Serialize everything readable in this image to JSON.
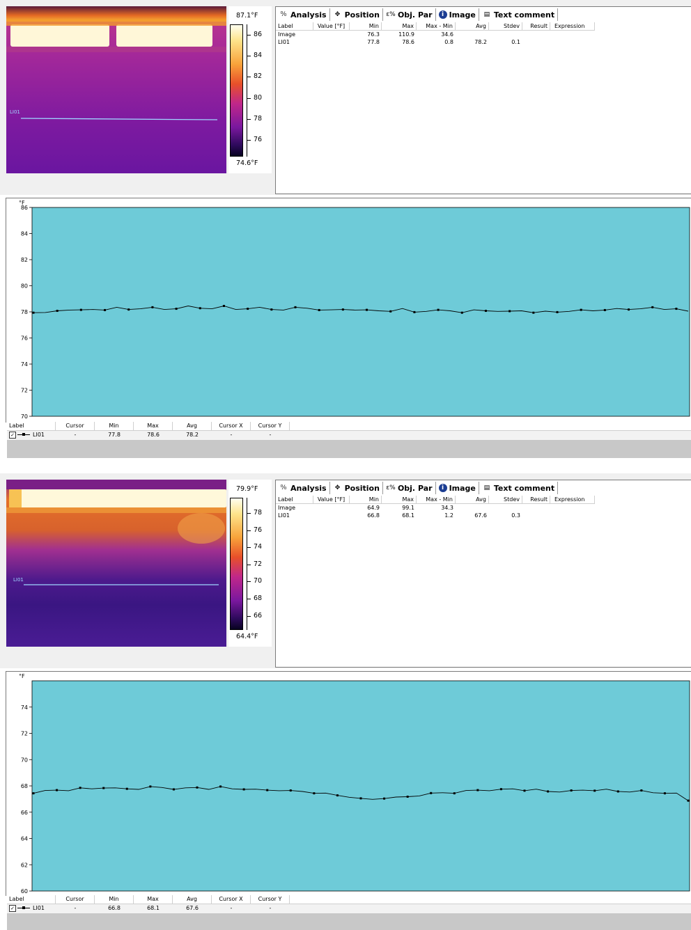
{
  "tabs": [
    {
      "label": "Analysis",
      "icon": "analysis-icon"
    },
    {
      "label": "Position",
      "icon": "position-icon"
    },
    {
      "label": "Obj. Par",
      "icon": "object-parameters-icon"
    },
    {
      "label": "Image",
      "icon": "info-icon"
    },
    {
      "label": "Text comment",
      "icon": "text-comment-icon"
    }
  ],
  "analysis_columns": [
    "Label",
    "Value [°F]",
    "Min",
    "Max",
    "Max - Min",
    "Avg",
    "Stdev",
    "Result",
    "Expression"
  ],
  "legend_columns": [
    "Label",
    "Cursor",
    "Min",
    "Max",
    "Avg",
    "Cursor X",
    "Cursor Y"
  ],
  "colors": {
    "chart_bg": "#6ecbd8",
    "line_marker": "#9fd7ff"
  },
  "panels": [
    {
      "scale": {
        "max": "87.1°F",
        "min": "74.6°F",
        "ticks": [
          "86",
          "84",
          "82",
          "80",
          "78",
          "76"
        ]
      },
      "line_label": "LI01",
      "analysis_rows": [
        {
          "label": "Image",
          "value": "",
          "min": "76.3",
          "max": "110.9",
          "maxmin": "34.6",
          "avg": "",
          "stdev": "",
          "result": "",
          "expression": ""
        },
        {
          "label": "LI01",
          "value": "",
          "min": "77.8",
          "max": "78.6",
          "maxmin": "0.8",
          "avg": "78.2",
          "stdev": "0.1",
          "result": "",
          "expression": ""
        }
      ],
      "chart_unit": "°F",
      "legend_row": {
        "label": "LI01",
        "cursor": "-",
        "min": "77.8",
        "max": "78.6",
        "avg": "78.2",
        "cursor_x": "-",
        "cursor_y": "-"
      }
    },
    {
      "scale": {
        "max": "79.9°F",
        "min": "64.4°F",
        "ticks": [
          "78",
          "76",
          "74",
          "72",
          "70",
          "68",
          "66"
        ]
      },
      "line_label": "LI01",
      "analysis_rows": [
        {
          "label": "Image",
          "value": "",
          "min": "64.9",
          "max": "99.1",
          "maxmin": "34.3",
          "avg": "",
          "stdev": "",
          "result": "",
          "expression": ""
        },
        {
          "label": "LI01",
          "value": "",
          "min": "66.8",
          "max": "68.1",
          "maxmin": "1.2",
          "avg": "67.6",
          "stdev": "0.3",
          "result": "",
          "expression": ""
        }
      ],
      "chart_unit": "°F",
      "legend_row": {
        "label": "LI01",
        "cursor": "-",
        "min": "66.8",
        "max": "68.1",
        "avg": "67.6",
        "cursor_x": "-",
        "cursor_y": "-"
      }
    }
  ],
  "chart_data": [
    {
      "type": "line",
      "ylabel": "°F",
      "ylim": [
        70,
        86
      ],
      "yticks": [
        86,
        84,
        82,
        80,
        78,
        76,
        74,
        72,
        70
      ],
      "series": [
        {
          "name": "LI01",
          "values": [
            78.0,
            77.9,
            78.1,
            78.2,
            78.1,
            78.2,
            78.2,
            78.3,
            78.2,
            78.3,
            78.3,
            78.2,
            78.3,
            78.4,
            78.3,
            78.3,
            78.4,
            78.2,
            78.3,
            78.3,
            78.2,
            78.2,
            78.3,
            78.3,
            78.2,
            78.1,
            78.2,
            78.2,
            78.1,
            78.1,
            78.1,
            78.2,
            78.0,
            78.1,
            78.1,
            78.1,
            78.0,
            78.1,
            78.1,
            78.1,
            78.0,
            78.1,
            78.0,
            78.0,
            78.0,
            78.1,
            78.1,
            78.1,
            78.2,
            78.2,
            78.2,
            78.3,
            78.3,
            78.2,
            78.3,
            78.0
          ]
        }
      ]
    },
    {
      "type": "line",
      "ylabel": "°F",
      "ylim": [
        60,
        76
      ],
      "yticks": [
        74,
        72,
        70,
        68,
        66,
        64,
        62,
        60
      ],
      "series": [
        {
          "name": "LI01",
          "values": [
            67.5,
            67.6,
            67.7,
            67.7,
            67.8,
            67.8,
            67.9,
            67.8,
            67.8,
            67.8,
            67.9,
            67.9,
            67.8,
            67.8,
            67.9,
            67.8,
            67.9,
            67.8,
            67.8,
            67.7,
            67.7,
            67.7,
            67.6,
            67.6,
            67.5,
            67.4,
            67.3,
            67.2,
            67.0,
            67.0,
            67.1,
            67.1,
            67.2,
            67.3,
            67.4,
            67.5,
            67.5,
            67.6,
            67.7,
            67.7,
            67.7,
            67.8,
            67.7,
            67.7,
            67.6,
            67.6,
            67.6,
            67.7,
            67.7,
            67.7,
            67.6,
            67.6,
            67.6,
            67.5,
            67.5,
            67.4,
            66.9
          ]
        }
      ]
    }
  ]
}
